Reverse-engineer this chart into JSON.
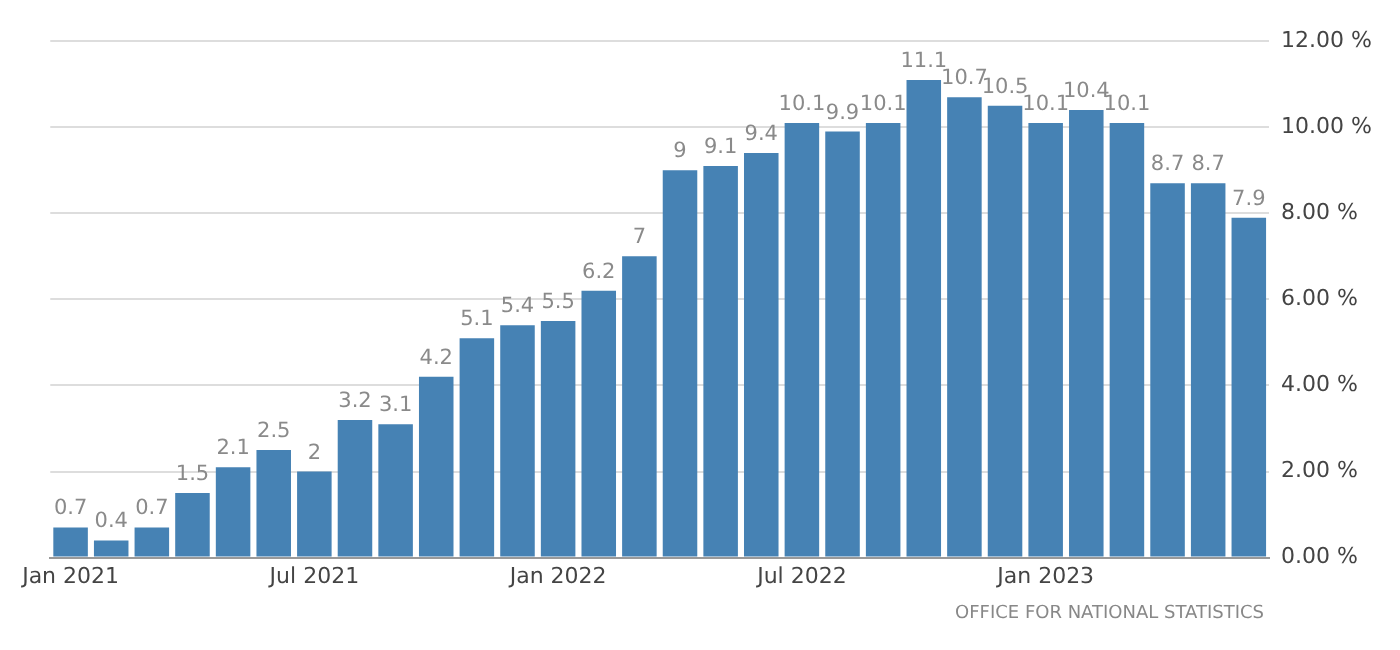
{
  "chart_data": {
    "type": "bar",
    "categories": [
      "Jan 2021",
      null,
      null,
      null,
      null,
      null,
      "Jul 2021",
      null,
      null,
      null,
      null,
      null,
      "Jan 2022",
      null,
      null,
      null,
      null,
      null,
      "Jul 2022",
      null,
      null,
      null,
      null,
      null,
      "Jan 2023",
      null,
      null,
      null,
      null,
      null
    ],
    "values": [
      0.7,
      0.4,
      0.7,
      1.5,
      2.1,
      2.5,
      2,
      3.2,
      3.1,
      4.2,
      5.1,
      5.4,
      5.5,
      6.2,
      7,
      9,
      9.1,
      9.4,
      10.1,
      9.9,
      10.1,
      11.1,
      10.7,
      10.5,
      10.1,
      10.4,
      10.1,
      8.7,
      8.7,
      7.9
    ],
    "color": "#4682b4",
    "ylim": [
      0,
      12
    ],
    "yticks": [
      {
        "value": 0,
        "label": "0.00 %"
      },
      {
        "value": 2,
        "label": "2.00 %"
      },
      {
        "value": 4,
        "label": "4.00 %"
      },
      {
        "value": 6,
        "label": "6.00 %"
      },
      {
        "value": 8,
        "label": "8.00 %"
      },
      {
        "value": 10,
        "label": "10.00 %"
      },
      {
        "value": 12,
        "label": "12.00 %"
      }
    ],
    "grid": "y",
    "data_labels": true,
    "annotations": [
      "OFFICE FOR NATIONAL STATISTICS"
    ]
  }
}
